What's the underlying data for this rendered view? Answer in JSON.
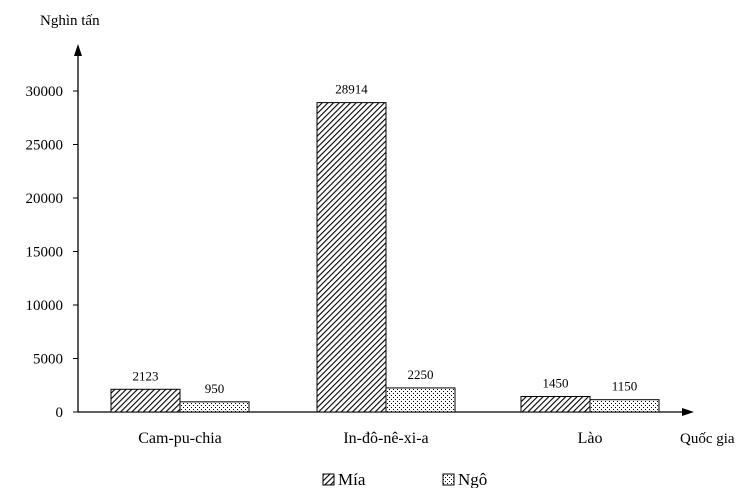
{
  "chart_data": {
    "type": "bar",
    "categories": [
      "Cam-pu-chia",
      "In-đô-nê-xi-a",
      "Lào"
    ],
    "series": [
      {
        "name": "Mía",
        "values": [
          2123,
          28914,
          1450
        ],
        "pattern": "diagonal-hatch"
      },
      {
        "name": "Ngô",
        "values": [
          950,
          2250,
          1150
        ],
        "pattern": "dots"
      }
    ],
    "ylabel": "Nghìn tấn",
    "xlabel": "Quốc gia",
    "ylim": [
      0,
      30000
    ],
    "yticks": [
      0,
      5000,
      10000,
      15000,
      20000,
      25000,
      30000
    ],
    "legend_position": "bottom",
    "grid": false
  }
}
